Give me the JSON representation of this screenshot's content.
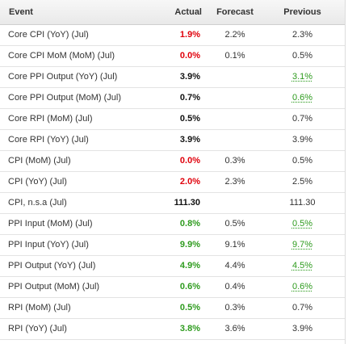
{
  "colors": {
    "red": "#e0000b",
    "green": "#2e9b1e",
    "header_bg": "#efefef",
    "row_border": "#e3e3e3"
  },
  "header": {
    "event": "Event",
    "actual": "Actual",
    "forecast": "Forecast",
    "previous": "Previous"
  },
  "rows": [
    {
      "event": "Core CPI (YoY) (Jul)",
      "actual": "1.9%",
      "actual_color": "red",
      "forecast": "2.2%",
      "previous": "2.3%",
      "previous_color": "plain"
    },
    {
      "event": "Core CPI MoM (MoM) (Jul)",
      "actual": "0.0%",
      "actual_color": "red",
      "forecast": "0.1%",
      "previous": "0.5%",
      "previous_color": "plain"
    },
    {
      "event": "Core PPI Output (YoY) (Jul)",
      "actual": "3.9%",
      "actual_color": "black",
      "forecast": "",
      "previous": "3.1%",
      "previous_color": "green"
    },
    {
      "event": "Core PPI Output (MoM) (Jul)",
      "actual": "0.7%",
      "actual_color": "black",
      "forecast": "",
      "previous": "0.6%",
      "previous_color": "green"
    },
    {
      "event": "Core RPI (MoM) (Jul)",
      "actual": "0.5%",
      "actual_color": "black",
      "forecast": "",
      "previous": "0.7%",
      "previous_color": "plain"
    },
    {
      "event": "Core RPI (YoY) (Jul)",
      "actual": "3.9%",
      "actual_color": "black",
      "forecast": "",
      "previous": "3.9%",
      "previous_color": "plain"
    },
    {
      "event": "CPI (MoM) (Jul)",
      "actual": "0.0%",
      "actual_color": "red",
      "forecast": "0.3%",
      "previous": "0.5%",
      "previous_color": "plain"
    },
    {
      "event": "CPI (YoY) (Jul)",
      "actual": "2.0%",
      "actual_color": "red",
      "forecast": "2.3%",
      "previous": "2.5%",
      "previous_color": "plain"
    },
    {
      "event": "CPI, n.s.a (Jul)",
      "actual": "111.30",
      "actual_color": "black",
      "forecast": "",
      "previous": "111.30",
      "previous_color": "plain"
    },
    {
      "event": "PPI Input (MoM) (Jul)",
      "actual": "0.8%",
      "actual_color": "green",
      "forecast": "0.5%",
      "previous": "0.5%",
      "previous_color": "green"
    },
    {
      "event": "PPI Input (YoY) (Jul)",
      "actual": "9.9%",
      "actual_color": "green",
      "forecast": "9.1%",
      "previous": "9.7%",
      "previous_color": "green"
    },
    {
      "event": "PPI Output (YoY) (Jul)",
      "actual": "4.9%",
      "actual_color": "green",
      "forecast": "4.4%",
      "previous": "4.5%",
      "previous_color": "green"
    },
    {
      "event": "PPI Output (MoM) (Jul)",
      "actual": "0.6%",
      "actual_color": "green",
      "forecast": "0.4%",
      "previous": "0.6%",
      "previous_color": "green"
    },
    {
      "event": "RPI (MoM) (Jul)",
      "actual": "0.5%",
      "actual_color": "green",
      "forecast": "0.3%",
      "previous": "0.7%",
      "previous_color": "plain"
    },
    {
      "event": "RPI (YoY) (Jul)",
      "actual": "3.8%",
      "actual_color": "green",
      "forecast": "3.6%",
      "previous": "3.9%",
      "previous_color": "plain"
    }
  ]
}
